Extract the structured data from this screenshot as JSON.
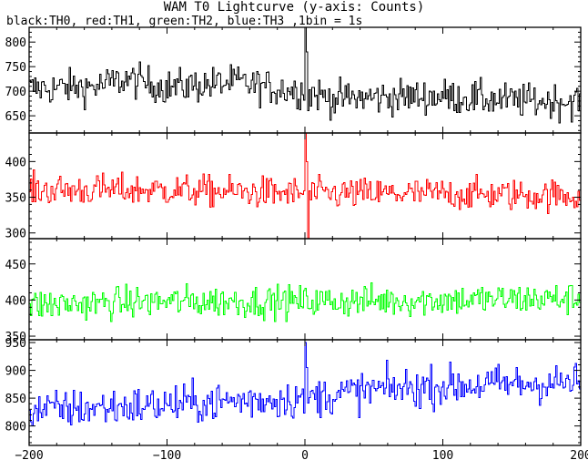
{
  "chart_data": {
    "type": "line",
    "title": "WAM T0 Lightcurve (y-axis: Counts)",
    "subtitle": "black:TH0, red:TH1, green:TH2, blue:TH3 ,1bin = 1s",
    "xlim": [
      -200,
      200
    ],
    "x_ticks": [
      -200,
      -100,
      0,
      100,
      200
    ],
    "x_tick_labels": [
      "−200",
      "−100",
      "0",
      "100",
      "200"
    ],
    "grid": false,
    "panels": [
      {
        "name": "TH0",
        "color": "#000000",
        "ylim": [
          615,
          830
        ],
        "y_ticks": [
          650,
          700,
          750,
          800
        ],
        "baseline": [
          [
            -200,
            705
          ],
          [
            -150,
            710
          ],
          [
            -130,
            725
          ],
          [
            -100,
            708
          ],
          [
            -50,
            718
          ],
          [
            -20,
            705
          ],
          [
            0,
            700
          ],
          [
            20,
            685
          ],
          [
            60,
            688
          ],
          [
            100,
            690
          ],
          [
            150,
            680
          ],
          [
            200,
            680
          ]
        ],
        "noise": 32,
        "spike": {
          "x": 0,
          "values": [
            830,
            780,
            660
          ]
        }
      },
      {
        "name": "TH1",
        "color": "#ff0000",
        "ylim": [
          292,
          440
        ],
        "y_ticks": [
          300,
          350,
          400
        ],
        "baseline": [
          [
            -200,
            360
          ],
          [
            -100,
            360
          ],
          [
            0,
            355
          ],
          [
            100,
            355
          ],
          [
            200,
            352
          ]
        ],
        "noise": 20,
        "spike": {
          "x": 0,
          "values": [
            440,
            400,
            290
          ]
        }
      },
      {
        "name": "TH2",
        "color": "#00ff00",
        "ylim": [
          345,
          485
        ],
        "y_ticks": [
          350,
          400,
          450
        ],
        "baseline": [
          [
            -200,
            393
          ],
          [
            -100,
            398
          ],
          [
            0,
            398
          ],
          [
            100,
            400
          ],
          [
            200,
            402
          ]
        ],
        "noise": 20,
        "spike": null
      },
      {
        "name": "TH3",
        "color": "#0000ff",
        "ylim": [
          765,
          955
        ],
        "y_ticks": [
          800,
          850,
          900,
          950
        ],
        "baseline": [
          [
            -200,
            828
          ],
          [
            -100,
            838
          ],
          [
            -50,
            845
          ],
          [
            0,
            850
          ],
          [
            50,
            865
          ],
          [
            100,
            872
          ],
          [
            150,
            875
          ],
          [
            200,
            878
          ]
        ],
        "noise": 32,
        "spike": {
          "x": 0,
          "values": [
            950,
            905
          ]
        }
      }
    ]
  }
}
